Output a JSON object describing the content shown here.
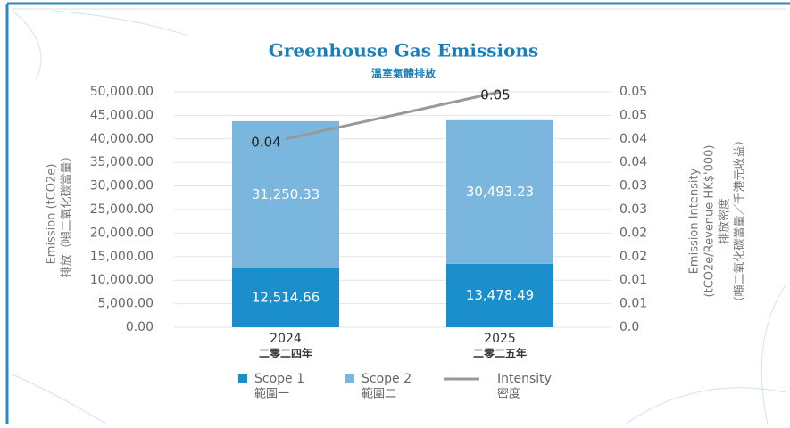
{
  "chart_data": {
    "type": "bar",
    "stacked": true,
    "title": "Greenhouse Gas Emissions",
    "subtitle": "溫室氣體排放",
    "categories": [
      "2024",
      "2025"
    ],
    "category_labels_zh": [
      "二零二四年",
      "二零二五年"
    ],
    "y_label": [
      "Emission (tCO2e)",
      "排放（噸二氧化碳當量）"
    ],
    "y2_label": [
      "Emission Intensity",
      "(tCO2e/Revenue HK$'000)",
      "排放密度",
      "（噸二氧化碳當量／千港元收益）"
    ],
    "ylim": [
      0,
      50000
    ],
    "yticks": [
      {
        "value": 0,
        "label": "0.00"
      },
      {
        "value": 5000,
        "label": "5,000.00"
      },
      {
        "value": 10000,
        "label": "10,000.00"
      },
      {
        "value": 15000,
        "label": "15,000.00"
      },
      {
        "value": 20000,
        "label": "20,000.00"
      },
      {
        "value": 25000,
        "label": "25,000.00"
      },
      {
        "value": 30000,
        "label": "30,000.00"
      },
      {
        "value": 35000,
        "label": "35,000.00"
      },
      {
        "value": 40000,
        "label": "40,000.00"
      },
      {
        "value": 45000,
        "label": "45,000.00"
      },
      {
        "value": 50000,
        "label": "50,000.00"
      }
    ],
    "y2lim": [
      0,
      0.05
    ],
    "y2ticks": [
      {
        "value": 0,
        "label": "0.0"
      },
      {
        "value": 0.005,
        "label": "0.01"
      },
      {
        "value": 0.01,
        "label": "0.01"
      },
      {
        "value": 0.015,
        "label": "0.02"
      },
      {
        "value": 0.02,
        "label": "0.02"
      },
      {
        "value": 0.025,
        "label": "0.03"
      },
      {
        "value": 0.03,
        "label": "0.03"
      },
      {
        "value": 0.035,
        "label": "0.04"
      },
      {
        "value": 0.04,
        "label": "0.04"
      },
      {
        "value": 0.045,
        "label": "0.05"
      },
      {
        "value": 0.05,
        "label": "0.05"
      }
    ],
    "grid": true,
    "series": [
      {
        "name": "Scope 1",
        "name_zh": "範圍一",
        "color": "#1b8fcb",
        "values": [
          12514.66,
          13478.49
        ],
        "value_labels": [
          "12,514.66",
          "13,478.49"
        ]
      },
      {
        "name": "Scope 2",
        "name_zh": "範圍二",
        "color": "#7ab6de",
        "values": [
          31250.33,
          30493.23
        ],
        "value_labels": [
          "31,250.33",
          "30,493.23"
        ]
      },
      {
        "name": "Intensity",
        "name_zh": "密度",
        "type": "line",
        "axis": "y2",
        "color": "#999999",
        "values": [
          0.04,
          0.05
        ]
      }
    ]
  }
}
